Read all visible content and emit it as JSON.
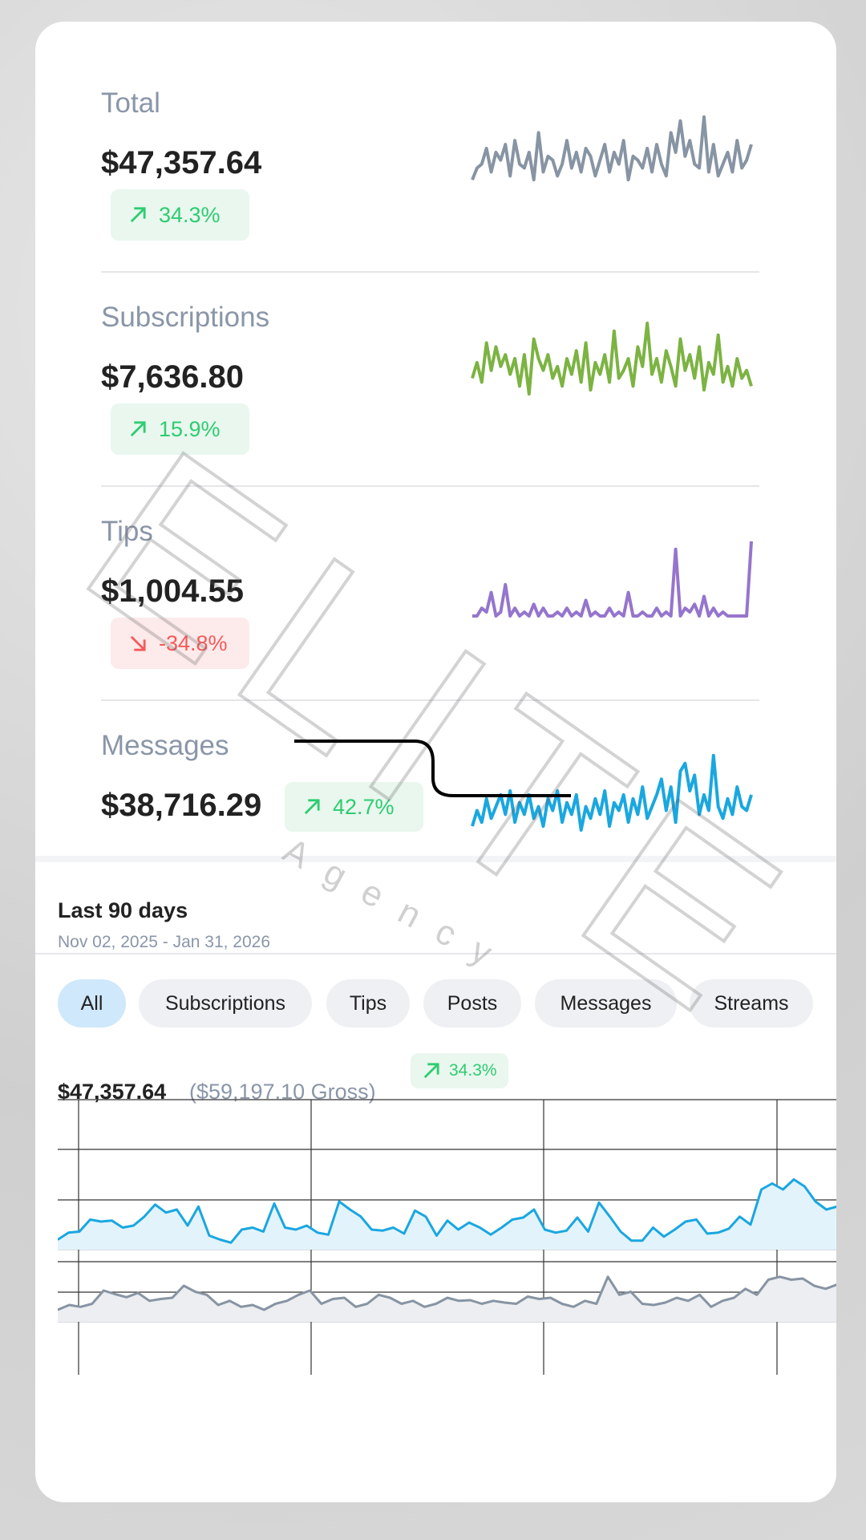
{
  "metrics": [
    {
      "label": "Total",
      "amount": "$47,357.64",
      "change": "34.3%",
      "direction": "up"
    },
    {
      "label": "Subscriptions",
      "amount": "$7,636.80",
      "change": "15.9%",
      "direction": "up"
    },
    {
      "label": "Tips",
      "amount": "$1,004.55",
      "change": "-34.8%",
      "direction": "down"
    },
    {
      "label": "Messages",
      "amount": "$38,716.29",
      "change": "42.7%",
      "direction": "up"
    }
  ],
  "period": {
    "title": "Last 90 days",
    "range": "Nov 02, 2025 - Jan 31, 2026"
  },
  "filters": [
    "All",
    "Subscriptions",
    "Tips",
    "Posts",
    "Messages",
    "Streams"
  ],
  "active_filter": 0,
  "summary": {
    "net": "$47,357.64",
    "gross": "($59,197.10 Gross)",
    "change": "34.3%",
    "direction": "up"
  },
  "watermark": {
    "main": "ELITE",
    "sub": "Agency"
  },
  "chart_data": [
    {
      "type": "line",
      "color": "#8794a3",
      "ylim": [
        0,
        100
      ],
      "values": [
        10,
        25,
        30,
        50,
        20,
        45,
        35,
        55,
        15,
        60,
        30,
        25,
        45,
        10,
        70,
        20,
        40,
        35,
        15,
        30,
        60,
        25,
        45,
        20,
        50,
        40,
        15,
        35,
        55,
        20,
        45,
        30,
        60,
        10,
        40,
        35,
        25,
        50,
        20,
        55,
        30,
        15,
        70,
        45,
        85,
        40,
        60,
        30,
        25,
        90,
        20,
        55,
        15,
        30,
        45,
        20,
        60,
        25,
        35,
        55
      ]
    },
    {
      "type": "line",
      "color": "#7cb342",
      "ylim": [
        0,
        100
      ],
      "values": [
        30,
        50,
        25,
        75,
        40,
        70,
        45,
        60,
        35,
        55,
        20,
        60,
        10,
        80,
        55,
        40,
        60,
        30,
        45,
        20,
        55,
        35,
        65,
        25,
        75,
        15,
        50,
        35,
        60,
        25,
        90,
        30,
        40,
        55,
        20,
        70,
        45,
        100,
        35,
        55,
        25,
        65,
        45,
        20,
        80,
        40,
        60,
        30,
        70,
        15,
        50,
        35,
        85,
        25,
        45,
        20,
        55,
        30,
        40,
        20
      ]
    },
    {
      "type": "line",
      "color": "#9575cd",
      "ylim": [
        0,
        100
      ],
      "values": [
        0,
        0,
        10,
        5,
        30,
        0,
        5,
        40,
        0,
        10,
        0,
        5,
        0,
        15,
        0,
        10,
        0,
        0,
        5,
        0,
        10,
        0,
        5,
        0,
        20,
        0,
        5,
        0,
        0,
        10,
        0,
        5,
        0,
        30,
        0,
        0,
        5,
        0,
        0,
        10,
        0,
        5,
        0,
        85,
        0,
        10,
        5,
        15,
        0,
        25,
        0,
        10,
        0,
        5,
        0,
        0,
        0,
        0,
        0,
        95
      ]
    },
    {
      "type": "line",
      "color": "#1aa7e0",
      "ylim": [
        0,
        100
      ],
      "values": [
        5,
        25,
        10,
        40,
        15,
        30,
        45,
        20,
        50,
        10,
        35,
        20,
        45,
        15,
        30,
        5,
        40,
        25,
        50,
        10,
        35,
        20,
        45,
        0,
        30,
        15,
        40,
        20,
        50,
        5,
        35,
        25,
        45,
        10,
        40,
        20,
        55,
        15,
        30,
        45,
        65,
        25,
        55,
        10,
        75,
        85,
        50,
        70,
        20,
        45,
        25,
        95,
        30,
        15,
        40,
        20,
        55,
        30,
        25,
        45
      ]
    },
    {
      "type": "area",
      "series": [
        {
          "color": "#1aa7e0",
          "fill": "#e3f3fb",
          "ylim": [
            0,
            100
          ],
          "values": [
            10,
            17,
            18,
            30,
            28,
            29,
            22,
            24,
            33,
            45,
            37,
            40,
            24,
            43,
            14,
            10,
            7,
            20,
            22,
            18,
            46,
            22,
            20,
            24,
            17,
            15,
            48,
            40,
            33,
            20,
            19,
            22,
            16,
            39,
            33,
            14,
            29,
            20,
            27,
            22,
            15,
            22,
            30,
            32,
            40,
            20,
            17,
            19,
            32,
            18,
            47,
            33,
            18,
            9,
            9,
            22,
            13,
            20,
            28,
            30,
            16,
            17,
            21,
            33,
            25,
            60,
            66,
            60,
            70,
            63,
            48,
            40,
            43
          ]
        },
        {
          "color": "#8794a3",
          "fill": "#eceef1",
          "ylim": [
            0,
            100
          ],
          "values": [
            20,
            28,
            25,
            30,
            52,
            46,
            41,
            48,
            35,
            38,
            40,
            60,
            50,
            45,
            28,
            35,
            25,
            28,
            20,
            30,
            35,
            45,
            52,
            30,
            38,
            40,
            25,
            30,
            45,
            40,
            30,
            35,
            25,
            30,
            40,
            35,
            36,
            30,
            35,
            32,
            30,
            42,
            38,
            40,
            30,
            25,
            35,
            30,
            75,
            45,
            50,
            30,
            28,
            32,
            40,
            35,
            45,
            25,
            35,
            40,
            55,
            45,
            70,
            75,
            70,
            72,
            60,
            55,
            62
          ]
        }
      ]
    }
  ]
}
